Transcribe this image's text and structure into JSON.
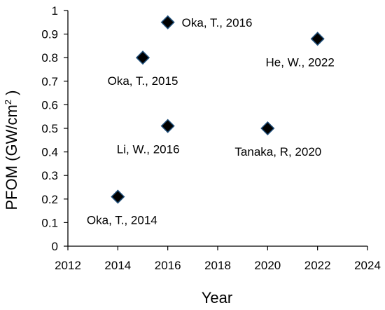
{
  "chart_data": {
    "type": "scatter",
    "xlabel": "Year",
    "ylabel_main": "PFOM (GW/cm",
    "ylabel_sup": "2",
    "ylabel_end": " )",
    "xlim": [
      2012,
      2024
    ],
    "ylim": [
      0,
      1
    ],
    "xticks": [
      "2012",
      "2014",
      "2016",
      "2018",
      "2020",
      "2022",
      "2024"
    ],
    "yticks": [
      "0",
      "0.1",
      "0.2",
      "0.3",
      "0.4",
      "0.5",
      "0.6",
      "0.7",
      "0.8",
      "0.9",
      "1"
    ],
    "marker": "diamond",
    "marker_color": "#000000",
    "marker_edge_color": "#1f4e79",
    "grid": false,
    "points": [
      {
        "x": 2014,
        "y": 0.21,
        "label": "Oka, T., 2014",
        "label_pos": "below"
      },
      {
        "x": 2015,
        "y": 0.8,
        "label": "Oka, T., 2015",
        "label_pos": "below"
      },
      {
        "x": 2016,
        "y": 0.95,
        "label": "Oka, T., 2016",
        "label_pos": "right"
      },
      {
        "x": 2016,
        "y": 0.51,
        "label": "Li, W., 2016",
        "label_pos": "below"
      },
      {
        "x": 2020,
        "y": 0.5,
        "label": "Tanaka, R, 2020",
        "label_pos": "below"
      },
      {
        "x": 2022,
        "y": 0.88,
        "label": "He, W., 2022",
        "label_pos": "below-left"
      }
    ]
  }
}
